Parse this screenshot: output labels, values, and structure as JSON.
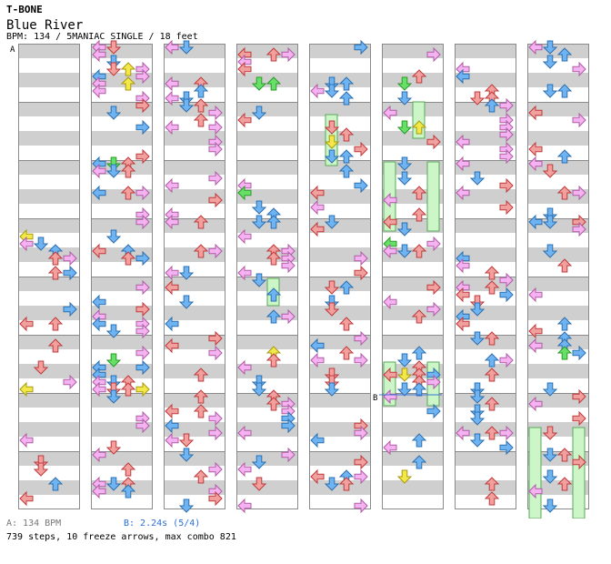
{
  "song": {
    "artist": "T-BONE",
    "title": "Blue River",
    "info": "BPM: 134 / 5MANIAC SINGLE / 18 feet"
  },
  "markers": {
    "a": "A",
    "b": "B"
  },
  "legend": {
    "a": "A: 134 BPM",
    "b": "B: 2.24s (5/4)"
  },
  "summary": "739 steps, 10 freeze arrows, max combo 821",
  "chart": {
    "columns": 8,
    "measures_per_column": 8,
    "lanes": [
      "left",
      "down",
      "up",
      "right"
    ],
    "lane_colors": {
      "left": "#f4b3f0",
      "down": "#6fb4f2",
      "up": "#f1a0a0",
      "right": "#f4b3f0"
    },
    "freeze_color": "#ccf5c8",
    "stop_line_color": "#3b74d6",
    "note_colors": {
      "quarter": "#f1a0a0",
      "eighth": "#6fb4f2",
      "sixteenth": "#f4b3f0",
      "twelfth": "#66e066",
      "other": "#f2e84a"
    }
  }
}
